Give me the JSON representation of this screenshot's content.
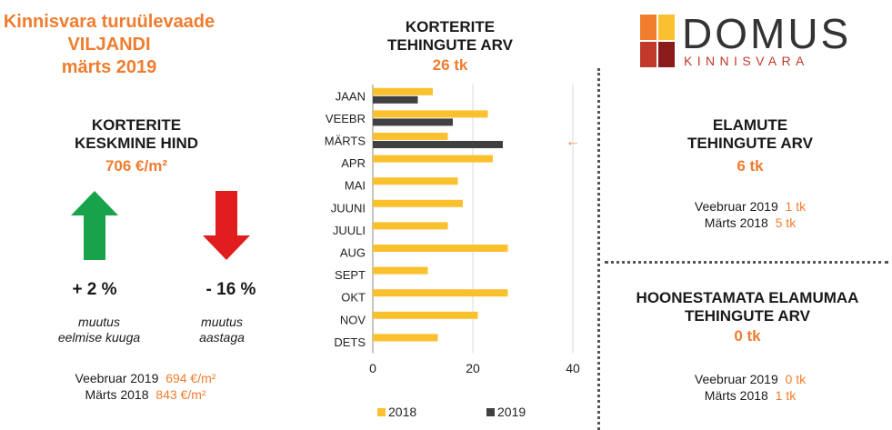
{
  "header": {
    "line1": "Kinnisvara turuülevaade",
    "line2": "VILJANDI",
    "line3": "märts 2019"
  },
  "avg_price": {
    "title_line1": "KORTERITE",
    "title_line2": "KESKMINE HIND",
    "value": "706 €/m²",
    "monthly_change": "+ 2 %",
    "monthly_note_line1": "muutus",
    "monthly_note_line2": "eelmise kuuga",
    "yearly_change": "- 16 %",
    "yearly_note_line1": "muutus",
    "yearly_note_line2": "aastaga",
    "compare1_label": "Veebruar 2019",
    "compare1_value": "694 €/m²",
    "compare2_label": "Märts 2018",
    "compare2_value": "843 €/m²",
    "up_color": "#16a34a",
    "down_color": "#e11d1d"
  },
  "apartment_tx": {
    "title_line1": "KORTERITE",
    "title_line2": "TEHINGUTE ARV",
    "value": "26 tk"
  },
  "chart_data": {
    "type": "bar",
    "orientation": "horizontal",
    "categories": [
      "JAAN",
      "VEEBR",
      "MÄRTS",
      "APR",
      "MAI",
      "JUUNI",
      "JUULI",
      "AUG",
      "SEPT",
      "OKT",
      "NOV",
      "DETS"
    ],
    "series": [
      {
        "name": "2018",
        "color": "#fbc02d",
        "values": [
          12,
          23,
          15,
          24,
          17,
          18,
          15,
          27,
          11,
          27,
          21,
          13
        ]
      },
      {
        "name": "2019",
        "color": "#404040",
        "values": [
          9,
          16,
          26,
          null,
          null,
          null,
          null,
          null,
          null,
          null,
          null,
          null
        ]
      }
    ],
    "xlim": [
      0,
      40
    ],
    "xticks": [
      "0",
      "20",
      "40"
    ],
    "grid": true,
    "legend": "bottom",
    "marker": "←",
    "marker_category": "MÄRTS"
  },
  "houses": {
    "title_line1": "ELAMUTE",
    "title_line2": "TEHINGUTE ARV",
    "value": "6 tk",
    "compare1_label": "Veebruar 2019",
    "compare1_value": "1 tk",
    "compare2_label": "Märts 2018",
    "compare2_value": "5 tk"
  },
  "land": {
    "title_line1": "HOONESTAMATA ELAMUMAA",
    "title_line2": "TEHINGUTE ARV",
    "value": "0 tk",
    "compare1_label": "Veebruar 2019",
    "compare1_value": "0 tk",
    "compare2_label": "Märts 2018",
    "compare2_value": "1 tk"
  },
  "logo": {
    "name": "DOMUS",
    "sub": "KINNISVARA",
    "colors": [
      "#f07c2e",
      "#fbc02d",
      "#c0392b",
      "#8b1a1a"
    ]
  }
}
